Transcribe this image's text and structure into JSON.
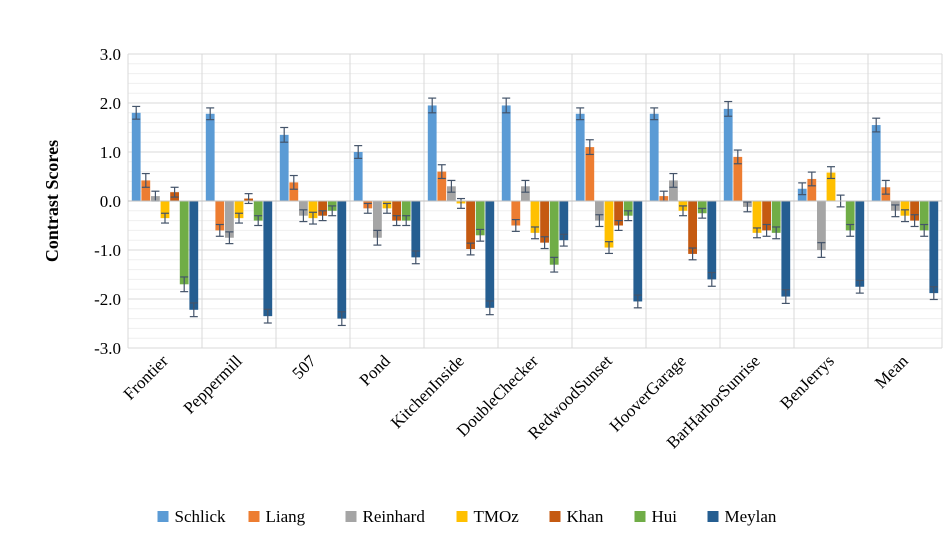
{
  "chart_data": {
    "type": "bar",
    "title": "",
    "xlabel": "",
    "ylabel": "Contrast Scores",
    "ylim": [
      -3,
      3
    ],
    "yticks": [
      "3.0",
      "2.0",
      "1.0",
      "0.0",
      "-1.0",
      "-2.0",
      "-3.0"
    ],
    "grid": true,
    "legend_position": "bottom",
    "categories": [
      "Frontier",
      "Peppermill",
      "507",
      "Pond",
      "KitchenInside",
      "DoubleChecker",
      "RedwoodSunset",
      "HooverGarage",
      "BarHarborSunrise",
      "BenJerrys",
      "Mean"
    ],
    "series": [
      {
        "name": "Schlick",
        "color": "#5B9BD5",
        "values": [
          1.8,
          1.78,
          1.35,
          1.0,
          1.95,
          1.95,
          1.78,
          1.78,
          1.88,
          0.25,
          1.55
        ],
        "errors": [
          0.13,
          0.12,
          0.15,
          0.13,
          0.15,
          0.15,
          0.12,
          0.12,
          0.15,
          0.12,
          0.14
        ]
      },
      {
        "name": "Liang",
        "color": "#ED7D31",
        "values": [
          0.42,
          -0.6,
          0.38,
          -0.15,
          0.6,
          -0.5,
          1.1,
          0.1,
          0.9,
          0.45,
          0.28
        ],
        "errors": [
          0.14,
          0.12,
          0.14,
          0.1,
          0.14,
          0.12,
          0.15,
          0.1,
          0.14,
          0.14,
          0.14
        ]
      },
      {
        "name": "Reinhard",
        "color": "#A5A5A5",
        "values": [
          0.1,
          -0.75,
          -0.3,
          -0.75,
          0.3,
          0.3,
          -0.4,
          0.42,
          -0.12,
          -1.0,
          -0.2
        ],
        "errors": [
          0.1,
          0.12,
          0.12,
          0.15,
          0.12,
          0.12,
          0.12,
          0.14,
          0.1,
          0.15,
          0.12
        ]
      },
      {
        "name": "TMOz",
        "color": "#FFC000",
        "values": [
          -0.35,
          -0.35,
          -0.35,
          -0.15,
          -0.05,
          -0.65,
          -0.95,
          -0.2,
          -0.65,
          0.58,
          -0.3
        ],
        "errors": [
          0.1,
          0.1,
          0.12,
          0.1,
          0.1,
          0.12,
          0.12,
          0.1,
          0.1,
          0.12,
          0.12
        ]
      },
      {
        "name": "Khan",
        "color": "#C55A11",
        "values": [
          0.18,
          0.05,
          -0.3,
          -0.4,
          -0.98,
          -0.85,
          -0.5,
          -1.08,
          -0.6,
          0.0,
          -0.4
        ],
        "errors": [
          0.1,
          0.1,
          0.1,
          0.1,
          0.12,
          0.12,
          0.1,
          0.12,
          0.12,
          0.12,
          0.12
        ]
      },
      {
        "name": "Hui",
        "color": "#70AD47",
        "values": [
          -1.7,
          -0.4,
          -0.2,
          -0.4,
          -0.7,
          -1.3,
          -0.3,
          -0.25,
          -0.65,
          -0.6,
          -0.6
        ],
        "errors": [
          0.15,
          0.1,
          0.1,
          0.1,
          0.12,
          0.15,
          0.1,
          0.1,
          0.12,
          0.12,
          0.12
        ]
      },
      {
        "name": "Meylan",
        "color": "#255E91",
        "values": [
          -2.22,
          -2.35,
          -2.4,
          -1.15,
          -2.18,
          -0.8,
          -2.05,
          -1.6,
          -1.95,
          -1.75,
          -1.88
        ],
        "errors": [
          0.14,
          0.14,
          0.14,
          0.13,
          0.14,
          0.12,
          0.13,
          0.14,
          0.14,
          0.13,
          0.13
        ]
      }
    ]
  }
}
